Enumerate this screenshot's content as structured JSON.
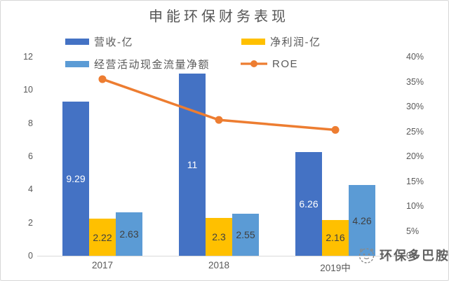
{
  "title": "申能环保财务表现",
  "watermark": {
    "text": "环保多巴胺",
    "icon": "panda-face-icon"
  },
  "chart_data": {
    "type": "bar",
    "subtype": "grouped bars with overlaid line (dual axis)",
    "title": "申能环保财务表现",
    "categories": [
      "2017",
      "2018",
      "2019中"
    ],
    "series": [
      {
        "name": "营收-亿",
        "type": "bar",
        "axis": "left",
        "color": "#4472C4",
        "values": [
          9.29,
          11,
          6.26
        ],
        "labels": [
          "9.29",
          "11",
          "6.26"
        ],
        "label_color": "#FFFFFF"
      },
      {
        "name": "净利润-亿",
        "type": "bar",
        "axis": "left",
        "color": "#FFC000",
        "values": [
          2.22,
          2.3,
          2.16
        ],
        "labels": [
          "2.22",
          "2.3",
          "2.16"
        ],
        "label_color": "#404040"
      },
      {
        "name": "经营活动现金流量净额",
        "type": "bar",
        "axis": "left",
        "color": "#5B9BD5",
        "values": [
          2.63,
          2.55,
          4.26
        ],
        "labels": [
          "2.63",
          "2.55",
          "4.26"
        ],
        "label_color": "#404040"
      },
      {
        "name": "ROE",
        "type": "line",
        "axis": "right",
        "color": "#ED7D31",
        "values_percent": [
          35.5,
          27.3,
          25.3
        ]
      }
    ],
    "left_axis": {
      "min": 0,
      "max": 12,
      "tick_step": 2,
      "ticks": [
        "0",
        "2",
        "4",
        "6",
        "8",
        "10",
        "12"
      ]
    },
    "right_axis": {
      "min_percent": 0,
      "max_percent": 40,
      "tick_step_percent": 5,
      "ticks": [
        "0%",
        "5%",
        "10%",
        "15%",
        "20%",
        "25%",
        "30%",
        "35%",
        "40%"
      ]
    },
    "legend_position": "top",
    "grid": false,
    "axis_text_color": "#595959",
    "axis_line_color": "#D9D9D9"
  }
}
